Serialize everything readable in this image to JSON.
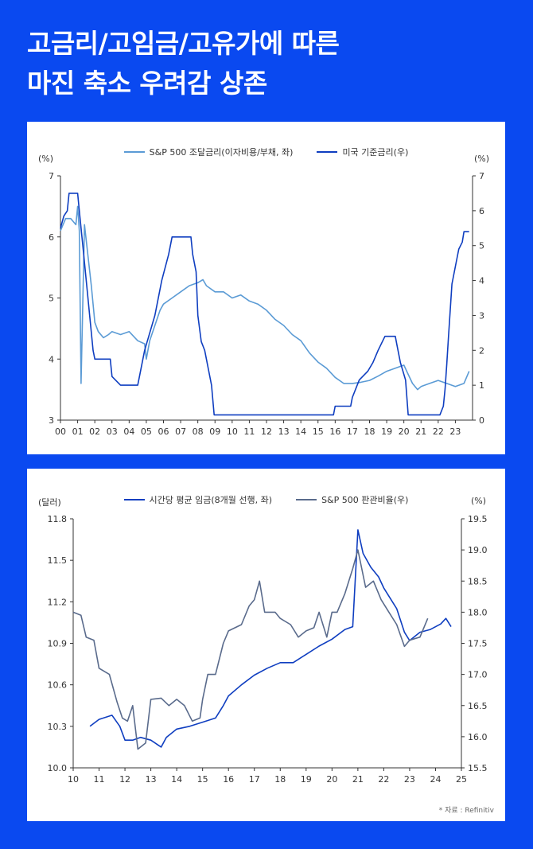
{
  "title": {
    "line1": "고금리/고임금/고유가에 따른",
    "line2": "마진 축소 우려감 상존"
  },
  "colors": {
    "background": "#0a49f0",
    "light_series": "#5b9bd5",
    "dark_series": "#0f3ec0",
    "gray_series": "#5a6b8c"
  },
  "chart1": {
    "left_unit": "(%)",
    "right_unit": "(%)",
    "legend": [
      {
        "label": "S&P 500 조달금리(이자비용/부채, 좌)",
        "color": "#5b9bd5"
      },
      {
        "label": "미국 기준금리(우)",
        "color": "#0f3ec0"
      }
    ]
  },
  "chart2": {
    "left_unit": "(달러)",
    "right_unit": "(%)",
    "legend": [
      {
        "label": "시간당 평균 임금(8개월 선행, 좌)",
        "color": "#0f3ec0"
      },
      {
        "label": "S&P 500 판관비율(우)",
        "color": "#5a6b8c"
      }
    ],
    "source": "* 자료 : Refinitiv"
  },
  "chart_data": [
    {
      "type": "line",
      "x_ticks": [
        "00",
        "01",
        "02",
        "03",
        "04",
        "05",
        "06",
        "07",
        "08",
        "09",
        "10",
        "11",
        "12",
        "13",
        "14",
        "15",
        "16",
        "17",
        "18",
        "19",
        "20",
        "21",
        "22",
        "23"
      ],
      "xlim": [
        2000.0,
        2024.0
      ],
      "left_axis": {
        "ylim": [
          3,
          7
        ],
        "ticks": [
          "3",
          "4",
          "5",
          "6",
          "7"
        ]
      },
      "right_axis": {
        "ylim": [
          0,
          7
        ],
        "ticks": [
          "0",
          "1",
          "2",
          "3",
          "4",
          "5",
          "6",
          "7"
        ]
      },
      "series": [
        {
          "name": "S&P 500 조달금리(이자비용/부채, 좌)",
          "axis": "left",
          "color": "#5b9bd5",
          "points": [
            [
              2000.0,
              6.1
            ],
            [
              2000.3,
              6.3
            ],
            [
              2000.6,
              6.3
            ],
            [
              2000.9,
              6.2
            ],
            [
              2001.0,
              6.5
            ],
            [
              2001.1,
              6.1
            ],
            [
              2001.2,
              3.6
            ],
            [
              2001.4,
              6.2
            ],
            [
              2001.6,
              5.7
            ],
            [
              2001.8,
              5.2
            ],
            [
              2002.0,
              4.6
            ],
            [
              2002.2,
              4.45
            ],
            [
              2002.5,
              4.35
            ],
            [
              2002.8,
              4.4
            ],
            [
              2003.0,
              4.45
            ],
            [
              2003.5,
              4.4
            ],
            [
              2004.0,
              4.45
            ],
            [
              2004.5,
              4.3
            ],
            [
              2004.9,
              4.25
            ],
            [
              2005.0,
              4.0
            ],
            [
              2005.2,
              4.3
            ],
            [
              2005.5,
              4.55
            ],
            [
              2005.8,
              4.8
            ],
            [
              2006.0,
              4.9
            ],
            [
              2006.5,
              5.0
            ],
            [
              2007.0,
              5.1
            ],
            [
              2007.5,
              5.2
            ],
            [
              2008.0,
              5.25
            ],
            [
              2008.3,
              5.3
            ],
            [
              2008.5,
              5.2
            ],
            [
              2009.0,
              5.1
            ],
            [
              2009.5,
              5.1
            ],
            [
              2010.0,
              5.0
            ],
            [
              2010.5,
              5.05
            ],
            [
              2011.0,
              4.95
            ],
            [
              2011.5,
              4.9
            ],
            [
              2012.0,
              4.8
            ],
            [
              2012.5,
              4.65
            ],
            [
              2013.0,
              4.55
            ],
            [
              2013.5,
              4.4
            ],
            [
              2014.0,
              4.3
            ],
            [
              2014.5,
              4.1
            ],
            [
              2015.0,
              3.95
            ],
            [
              2015.5,
              3.85
            ],
            [
              2016.0,
              3.7
            ],
            [
              2016.5,
              3.6
            ],
            [
              2017.0,
              3.6
            ],
            [
              2017.5,
              3.62
            ],
            [
              2018.0,
              3.65
            ],
            [
              2018.5,
              3.72
            ],
            [
              2019.0,
              3.8
            ],
            [
              2019.5,
              3.85
            ],
            [
              2020.0,
              3.9
            ],
            [
              2020.2,
              3.78
            ],
            [
              2020.5,
              3.6
            ],
            [
              2020.8,
              3.5
            ],
            [
              2021.0,
              3.55
            ],
            [
              2021.5,
              3.6
            ],
            [
              2022.0,
              3.65
            ],
            [
              2022.5,
              3.6
            ],
            [
              2023.0,
              3.55
            ],
            [
              2023.5,
              3.6
            ],
            [
              2023.8,
              3.8
            ]
          ]
        },
        {
          "name": "미국 기준금리(우)",
          "axis": "right",
          "color": "#0f3ec0",
          "points": [
            [
              2000.0,
              5.5
            ],
            [
              2000.2,
              5.85
            ],
            [
              2000.4,
              6.0
            ],
            [
              2000.5,
              6.5
            ],
            [
              2001.0,
              6.5
            ],
            [
              2001.1,
              6.0
            ],
            [
              2001.3,
              5.0
            ],
            [
              2001.5,
              4.0
            ],
            [
              2001.7,
              3.0
            ],
            [
              2001.9,
              2.0
            ],
            [
              2002.0,
              1.75
            ],
            [
              2002.9,
              1.75
            ],
            [
              2003.0,
              1.25
            ],
            [
              2003.5,
              1.0
            ],
            [
              2004.5,
              1.0
            ],
            [
              2004.6,
              1.25
            ],
            [
              2004.9,
              2.0
            ],
            [
              2005.5,
              3.0
            ],
            [
              2005.9,
              4.0
            ],
            [
              2006.3,
              4.75
            ],
            [
              2006.5,
              5.25
            ],
            [
              2007.6,
              5.25
            ],
            [
              2007.7,
              4.75
            ],
            [
              2007.9,
              4.25
            ],
            [
              2008.0,
              3.0
            ],
            [
              2008.2,
              2.25
            ],
            [
              2008.4,
              2.0
            ],
            [
              2008.8,
              1.0
            ],
            [
              2008.95,
              0.15
            ],
            [
              2015.9,
              0.15
            ],
            [
              2016.0,
              0.4
            ],
            [
              2016.9,
              0.4
            ],
            [
              2017.0,
              0.65
            ],
            [
              2017.4,
              1.15
            ],
            [
              2017.9,
              1.4
            ],
            [
              2018.2,
              1.65
            ],
            [
              2018.5,
              2.0
            ],
            [
              2018.9,
              2.4
            ],
            [
              2019.5,
              2.4
            ],
            [
              2019.6,
              2.15
            ],
            [
              2019.8,
              1.65
            ],
            [
              2020.1,
              1.15
            ],
            [
              2020.25,
              0.15
            ],
            [
              2022.1,
              0.15
            ],
            [
              2022.3,
              0.4
            ],
            [
              2022.4,
              0.9
            ],
            [
              2022.5,
              1.6
            ],
            [
              2022.6,
              2.4
            ],
            [
              2022.8,
              3.9
            ],
            [
              2023.0,
              4.4
            ],
            [
              2023.2,
              4.9
            ],
            [
              2023.4,
              5.1
            ],
            [
              2023.5,
              5.4
            ],
            [
              2023.8,
              5.4
            ]
          ]
        }
      ]
    },
    {
      "type": "line",
      "x_ticks": [
        "10",
        "11",
        "12",
        "13",
        "14",
        "15",
        "16",
        "17",
        "18",
        "19",
        "20",
        "21",
        "22",
        "23",
        "24",
        "25"
      ],
      "xlim": [
        2010.0,
        2025.0
      ],
      "left_axis": {
        "ylim": [
          10.0,
          11.8
        ],
        "ticks": [
          "10.0",
          "10.3",
          "10.6",
          "10.9",
          "11.2",
          "11.5",
          "11.8"
        ]
      },
      "right_axis": {
        "ylim": [
          15.5,
          19.5
        ],
        "ticks": [
          "15.5",
          "16.0",
          "16.5",
          "17.0",
          "17.5",
          "18.0",
          "18.5",
          "19.0",
          "19.5"
        ]
      },
      "series": [
        {
          "name": "시간당 평균 임금(8개월 선행, 좌)",
          "axis": "left",
          "color": "#0f3ec0",
          "points": [
            [
              2010.65,
              10.3
            ],
            [
              2011.0,
              10.35
            ],
            [
              2011.5,
              10.38
            ],
            [
              2011.8,
              10.3
            ],
            [
              2012.0,
              10.2
            ],
            [
              2012.3,
              10.2
            ],
            [
              2012.6,
              10.22
            ],
            [
              2013.0,
              10.2
            ],
            [
              2013.4,
              10.15
            ],
            [
              2013.6,
              10.22
            ],
            [
              2014.0,
              10.28
            ],
            [
              2014.5,
              10.3
            ],
            [
              2015.0,
              10.33
            ],
            [
              2015.5,
              10.36
            ],
            [
              2015.8,
              10.45
            ],
            [
              2016.0,
              10.52
            ],
            [
              2016.5,
              10.6
            ],
            [
              2017.0,
              10.67
            ],
            [
              2017.5,
              10.72
            ],
            [
              2018.0,
              10.76
            ],
            [
              2018.5,
              10.76
            ],
            [
              2019.0,
              10.82
            ],
            [
              2019.5,
              10.88
            ],
            [
              2020.0,
              10.93
            ],
            [
              2020.5,
              11.0
            ],
            [
              2020.8,
              11.02
            ],
            [
              2021.0,
              11.72
            ],
            [
              2021.2,
              11.55
            ],
            [
              2021.5,
              11.45
            ],
            [
              2021.8,
              11.38
            ],
            [
              2022.0,
              11.3
            ],
            [
              2022.5,
              11.15
            ],
            [
              2022.8,
              10.98
            ],
            [
              2023.0,
              10.92
            ],
            [
              2023.4,
              10.98
            ],
            [
              2023.8,
              11.0
            ],
            [
              2024.2,
              11.04
            ],
            [
              2024.4,
              11.08
            ],
            [
              2024.6,
              11.02
            ]
          ]
        },
        {
          "name": "S&P 500 판관비율(우)",
          "axis": "right",
          "color": "#5a6b8c",
          "points": [
            [
              2010.0,
              18.0
            ],
            [
              2010.3,
              17.95
            ],
            [
              2010.5,
              17.6
            ],
            [
              2010.8,
              17.55
            ],
            [
              2011.0,
              17.1
            ],
            [
              2011.4,
              17.0
            ],
            [
              2011.7,
              16.55
            ],
            [
              2011.9,
              16.3
            ],
            [
              2012.1,
              16.25
            ],
            [
              2012.3,
              16.5
            ],
            [
              2012.5,
              15.8
            ],
            [
              2012.8,
              15.9
            ],
            [
              2013.0,
              16.6
            ],
            [
              2013.4,
              16.62
            ],
            [
              2013.7,
              16.5
            ],
            [
              2014.0,
              16.6
            ],
            [
              2014.3,
              16.5
            ],
            [
              2014.6,
              16.25
            ],
            [
              2014.9,
              16.3
            ],
            [
              2015.0,
              16.6
            ],
            [
              2015.2,
              17.0
            ],
            [
              2015.5,
              17.0
            ],
            [
              2015.8,
              17.5
            ],
            [
              2016.0,
              17.7
            ],
            [
              2016.5,
              17.8
            ],
            [
              2016.8,
              18.1
            ],
            [
              2017.0,
              18.2
            ],
            [
              2017.2,
              18.5
            ],
            [
              2017.4,
              18.0
            ],
            [
              2017.8,
              18.0
            ],
            [
              2018.0,
              17.9
            ],
            [
              2018.4,
              17.8
            ],
            [
              2018.7,
              17.6
            ],
            [
              2019.0,
              17.7
            ],
            [
              2019.3,
              17.75
            ],
            [
              2019.5,
              18.0
            ],
            [
              2019.8,
              17.6
            ],
            [
              2020.0,
              18.0
            ],
            [
              2020.2,
              18.0
            ],
            [
              2020.5,
              18.3
            ],
            [
              2020.8,
              18.7
            ],
            [
              2021.0,
              19.0
            ],
            [
              2021.3,
              18.4
            ],
            [
              2021.6,
              18.5
            ],
            [
              2021.9,
              18.2
            ],
            [
              2022.2,
              18.0
            ],
            [
              2022.5,
              17.8
            ],
            [
              2022.8,
              17.45
            ],
            [
              2023.0,
              17.55
            ],
            [
              2023.4,
              17.6
            ],
            [
              2023.7,
              17.9
            ]
          ]
        }
      ]
    }
  ]
}
